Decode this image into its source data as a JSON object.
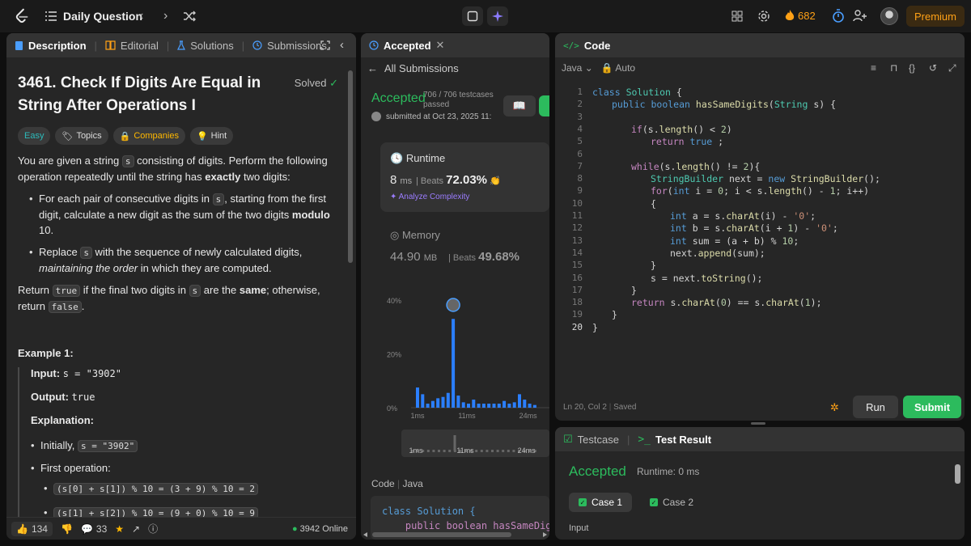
{
  "topbar": {
    "title": "Daily Question",
    "streak": "682",
    "premium": "Premium"
  },
  "desc": {
    "tabs": [
      "Description",
      "Editorial",
      "Solutions",
      "Submissions"
    ],
    "title": "3461. Check If Digits Are Equal in String After Operations I",
    "solved": "Solved",
    "tags": [
      "Easy",
      "Topics",
      "Companies",
      "Hint"
    ],
    "p1_a": "You are given a string ",
    "p1_code": "s",
    "p1_b": " consisting of digits. Perform the following operation repeatedly until the string has ",
    "p1_bold": "exactly",
    "p1_c": " two digits:",
    "b1_a": "For each pair of consecutive digits in ",
    "b1_code": "s",
    "b1_b": ", starting from the first digit, calculate a new digit as the sum of the two digits ",
    "b1_bold": "modulo",
    "b1_c": " 10.",
    "b2_a": "Replace ",
    "b2_code": "s",
    "b2_b": " with the sequence of newly calculated digits, ",
    "b2_em": "maintaining the order",
    "b2_c": " in which they are computed.",
    "p2_a": "Return ",
    "p2_code1": "true",
    "p2_b": " if the final two digits in ",
    "p2_code2": "s",
    "p2_c": " are the ",
    "p2_bold": "same",
    "p2_d": "; otherwise, return ",
    "p2_code3": "false",
    "p2_e": ".",
    "example_title": "Example 1:",
    "input_label": "Input:",
    "input_val": "s = \"3902\"",
    "output_label": "Output:",
    "output_val": "true",
    "expl_label": "Explanation:",
    "init_label": "Initially, ",
    "init_code": "s = \"3902\"",
    "first_op": "First operation:",
    "op1": "(s[0] + s[1]) % 10 = (3 + 9) % 10 = 2",
    "op2": "(s[1] + s[2]) % 10 = (9 + 0) % 10 = 9",
    "likes": "134",
    "comments": "33",
    "online": "3942 Online"
  },
  "accepted": {
    "tab": "Accepted",
    "all": "All Submissions",
    "status": "Accepted",
    "testcases": "706 / 706 testcases",
    "passed": "passed",
    "submitted": "submitted at Oct 23, 2025 11:",
    "runtime_label": "Runtime",
    "runtime_val": "8",
    "runtime_unit": "ms",
    "runtime_beats_label": "Beats",
    "runtime_beats": "72.03%",
    "analyze": "Analyze Complexity",
    "memory_label": "Memory",
    "memory_val": "44.90",
    "memory_unit": "MB",
    "memory_beats_label": "Beats",
    "memory_beats": "49.68%",
    "code_label": "Code",
    "code_lang": "Java",
    "code_preview_1": "class Solution {",
    "code_preview_2": "    public boolean hasSameDigits"
  },
  "chart_data": {
    "type": "bar",
    "y_ticks": [
      "40%",
      "20%",
      "0%"
    ],
    "x_ticks": [
      "1ms",
      "11ms",
      "24ms"
    ],
    "ylim": [
      0,
      40
    ],
    "values": [
      7.5,
      5,
      1.5,
      2.5,
      3.5,
      4,
      5.5,
      33,
      4.5,
      2,
      1.5,
      3,
      1.5,
      1.5,
      1.5,
      1.5,
      1.5,
      2.5,
      1.5,
      2,
      5,
      3,
      1.5,
      1
    ],
    "highlight_index": 7,
    "brush_ticks": [
      "1ms",
      "11ms",
      "24ms"
    ]
  },
  "code": {
    "tab": "Code",
    "lang": "Java",
    "mode": "Auto",
    "status": "Ln 20, Col 2",
    "saved": "Saved",
    "run": "Run",
    "submit": "Submit"
  },
  "test": {
    "tab1": "Testcase",
    "tab2": "Test Result",
    "status": "Accepted",
    "runtime": "Runtime: 0 ms",
    "case1": "Case 1",
    "case2": "Case 2",
    "input": "Input"
  }
}
